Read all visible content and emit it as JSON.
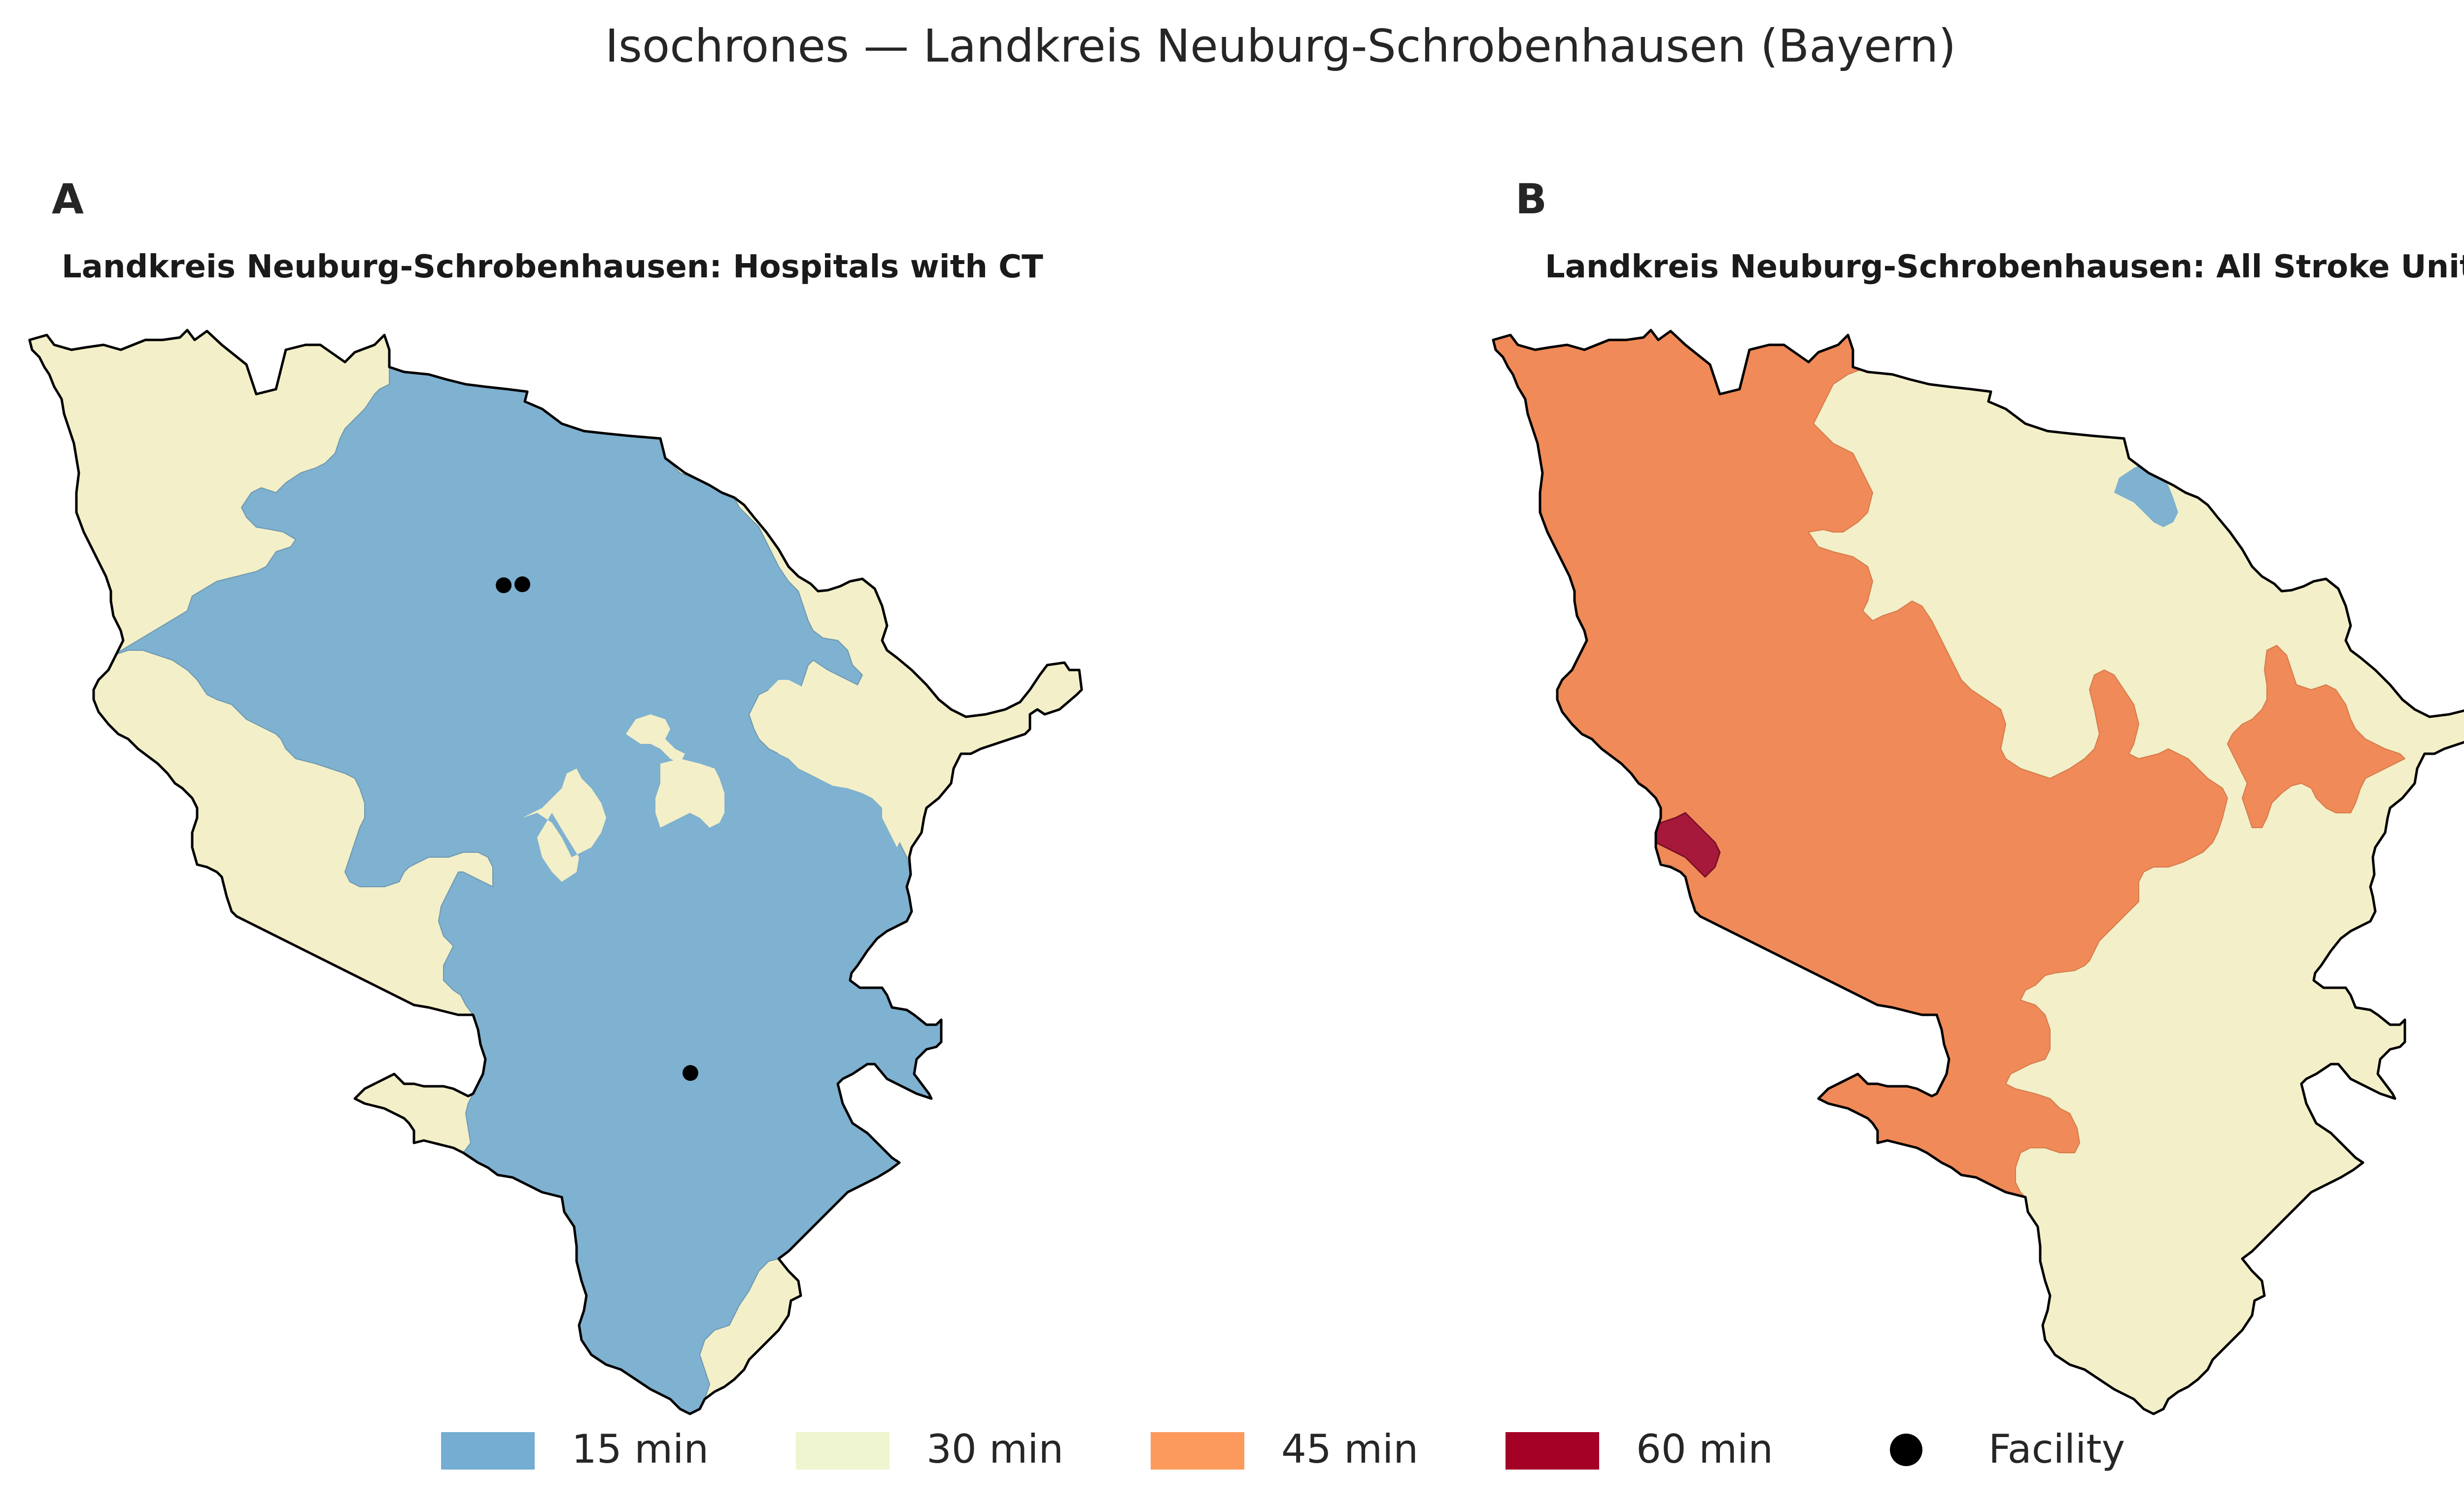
{
  "title": "Isochrones — Landkreis Neuburg-Schrobenhausen (Bayern)",
  "panels": [
    {
      "letter": "A",
      "title": "Landkreis Neuburg-Schrobenhausen: Hospitals with CT",
      "facility_count": 3
    },
    {
      "letter": "B",
      "title": "Landkreis Neuburg-Schrobenhausen: All Stroke Units",
      "facility_count": 0
    }
  ],
  "legend": [
    {
      "label": "15 min",
      "color": "#74add1"
    },
    {
      "label": "30 min",
      "color": "#eef5cf"
    },
    {
      "label": "45 min",
      "color": "#fb9a5c"
    },
    {
      "label": "60 min",
      "color": "#a50026"
    },
    {
      "label": "Facility",
      "color": "#000000",
      "icon": "filled-circle-icon"
    }
  ],
  "colors": {
    "zone_15": "#7fb1d0",
    "zone_30": "#f3efc8",
    "zone_45": "#f08a58",
    "zone_60": "#a7193a",
    "boundary": "#000000"
  }
}
